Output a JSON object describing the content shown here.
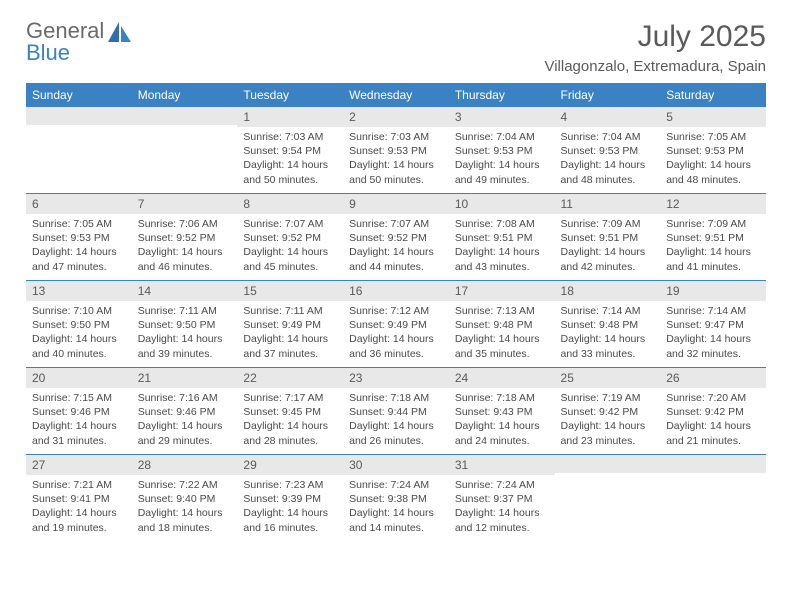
{
  "logo": {
    "line1": "General",
    "line2": "Blue"
  },
  "title": "July 2025",
  "location": "Villagonzalo, Extremadura, Spain",
  "colors": {
    "header_bg": "#3a82c4",
    "header_text": "#ffffff",
    "daynum_bg": "#e8e8e8",
    "daynum_text": "#5a5a5a",
    "border": "#3a82c4",
    "body_text": "#4a4a4a",
    "logo_gray": "#6a6a6a",
    "logo_blue": "#3a82c4",
    "background": "#ffffff"
  },
  "weekdays": [
    "Sunday",
    "Monday",
    "Tuesday",
    "Wednesday",
    "Thursday",
    "Friday",
    "Saturday"
  ],
  "weeks": [
    [
      {
        "day": "",
        "lines": []
      },
      {
        "day": "",
        "lines": []
      },
      {
        "day": "1",
        "lines": [
          "Sunrise: 7:03 AM",
          "Sunset: 9:54 PM",
          "Daylight: 14 hours",
          "and 50 minutes."
        ]
      },
      {
        "day": "2",
        "lines": [
          "Sunrise: 7:03 AM",
          "Sunset: 9:53 PM",
          "Daylight: 14 hours",
          "and 50 minutes."
        ]
      },
      {
        "day": "3",
        "lines": [
          "Sunrise: 7:04 AM",
          "Sunset: 9:53 PM",
          "Daylight: 14 hours",
          "and 49 minutes."
        ]
      },
      {
        "day": "4",
        "lines": [
          "Sunrise: 7:04 AM",
          "Sunset: 9:53 PM",
          "Daylight: 14 hours",
          "and 48 minutes."
        ]
      },
      {
        "day": "5",
        "lines": [
          "Sunrise: 7:05 AM",
          "Sunset: 9:53 PM",
          "Daylight: 14 hours",
          "and 48 minutes."
        ]
      }
    ],
    [
      {
        "day": "6",
        "lines": [
          "Sunrise: 7:05 AM",
          "Sunset: 9:53 PM",
          "Daylight: 14 hours",
          "and 47 minutes."
        ]
      },
      {
        "day": "7",
        "lines": [
          "Sunrise: 7:06 AM",
          "Sunset: 9:52 PM",
          "Daylight: 14 hours",
          "and 46 minutes."
        ]
      },
      {
        "day": "8",
        "lines": [
          "Sunrise: 7:07 AM",
          "Sunset: 9:52 PM",
          "Daylight: 14 hours",
          "and 45 minutes."
        ]
      },
      {
        "day": "9",
        "lines": [
          "Sunrise: 7:07 AM",
          "Sunset: 9:52 PM",
          "Daylight: 14 hours",
          "and 44 minutes."
        ]
      },
      {
        "day": "10",
        "lines": [
          "Sunrise: 7:08 AM",
          "Sunset: 9:51 PM",
          "Daylight: 14 hours",
          "and 43 minutes."
        ]
      },
      {
        "day": "11",
        "lines": [
          "Sunrise: 7:09 AM",
          "Sunset: 9:51 PM",
          "Daylight: 14 hours",
          "and 42 minutes."
        ]
      },
      {
        "day": "12",
        "lines": [
          "Sunrise: 7:09 AM",
          "Sunset: 9:51 PM",
          "Daylight: 14 hours",
          "and 41 minutes."
        ]
      }
    ],
    [
      {
        "day": "13",
        "lines": [
          "Sunrise: 7:10 AM",
          "Sunset: 9:50 PM",
          "Daylight: 14 hours",
          "and 40 minutes."
        ]
      },
      {
        "day": "14",
        "lines": [
          "Sunrise: 7:11 AM",
          "Sunset: 9:50 PM",
          "Daylight: 14 hours",
          "and 39 minutes."
        ]
      },
      {
        "day": "15",
        "lines": [
          "Sunrise: 7:11 AM",
          "Sunset: 9:49 PM",
          "Daylight: 14 hours",
          "and 37 minutes."
        ]
      },
      {
        "day": "16",
        "lines": [
          "Sunrise: 7:12 AM",
          "Sunset: 9:49 PM",
          "Daylight: 14 hours",
          "and 36 minutes."
        ]
      },
      {
        "day": "17",
        "lines": [
          "Sunrise: 7:13 AM",
          "Sunset: 9:48 PM",
          "Daylight: 14 hours",
          "and 35 minutes."
        ]
      },
      {
        "day": "18",
        "lines": [
          "Sunrise: 7:14 AM",
          "Sunset: 9:48 PM",
          "Daylight: 14 hours",
          "and 33 minutes."
        ]
      },
      {
        "day": "19",
        "lines": [
          "Sunrise: 7:14 AM",
          "Sunset: 9:47 PM",
          "Daylight: 14 hours",
          "and 32 minutes."
        ]
      }
    ],
    [
      {
        "day": "20",
        "lines": [
          "Sunrise: 7:15 AM",
          "Sunset: 9:46 PM",
          "Daylight: 14 hours",
          "and 31 minutes."
        ]
      },
      {
        "day": "21",
        "lines": [
          "Sunrise: 7:16 AM",
          "Sunset: 9:46 PM",
          "Daylight: 14 hours",
          "and 29 minutes."
        ]
      },
      {
        "day": "22",
        "lines": [
          "Sunrise: 7:17 AM",
          "Sunset: 9:45 PM",
          "Daylight: 14 hours",
          "and 28 minutes."
        ]
      },
      {
        "day": "23",
        "lines": [
          "Sunrise: 7:18 AM",
          "Sunset: 9:44 PM",
          "Daylight: 14 hours",
          "and 26 minutes."
        ]
      },
      {
        "day": "24",
        "lines": [
          "Sunrise: 7:18 AM",
          "Sunset: 9:43 PM",
          "Daylight: 14 hours",
          "and 24 minutes."
        ]
      },
      {
        "day": "25",
        "lines": [
          "Sunrise: 7:19 AM",
          "Sunset: 9:42 PM",
          "Daylight: 14 hours",
          "and 23 minutes."
        ]
      },
      {
        "day": "26",
        "lines": [
          "Sunrise: 7:20 AM",
          "Sunset: 9:42 PM",
          "Daylight: 14 hours",
          "and 21 minutes."
        ]
      }
    ],
    [
      {
        "day": "27",
        "lines": [
          "Sunrise: 7:21 AM",
          "Sunset: 9:41 PM",
          "Daylight: 14 hours",
          "and 19 minutes."
        ]
      },
      {
        "day": "28",
        "lines": [
          "Sunrise: 7:22 AM",
          "Sunset: 9:40 PM",
          "Daylight: 14 hours",
          "and 18 minutes."
        ]
      },
      {
        "day": "29",
        "lines": [
          "Sunrise: 7:23 AM",
          "Sunset: 9:39 PM",
          "Daylight: 14 hours",
          "and 16 minutes."
        ]
      },
      {
        "day": "30",
        "lines": [
          "Sunrise: 7:24 AM",
          "Sunset: 9:38 PM",
          "Daylight: 14 hours",
          "and 14 minutes."
        ]
      },
      {
        "day": "31",
        "lines": [
          "Sunrise: 7:24 AM",
          "Sunset: 9:37 PM",
          "Daylight: 14 hours",
          "and 12 minutes."
        ]
      },
      {
        "day": "",
        "lines": []
      },
      {
        "day": "",
        "lines": []
      }
    ]
  ]
}
